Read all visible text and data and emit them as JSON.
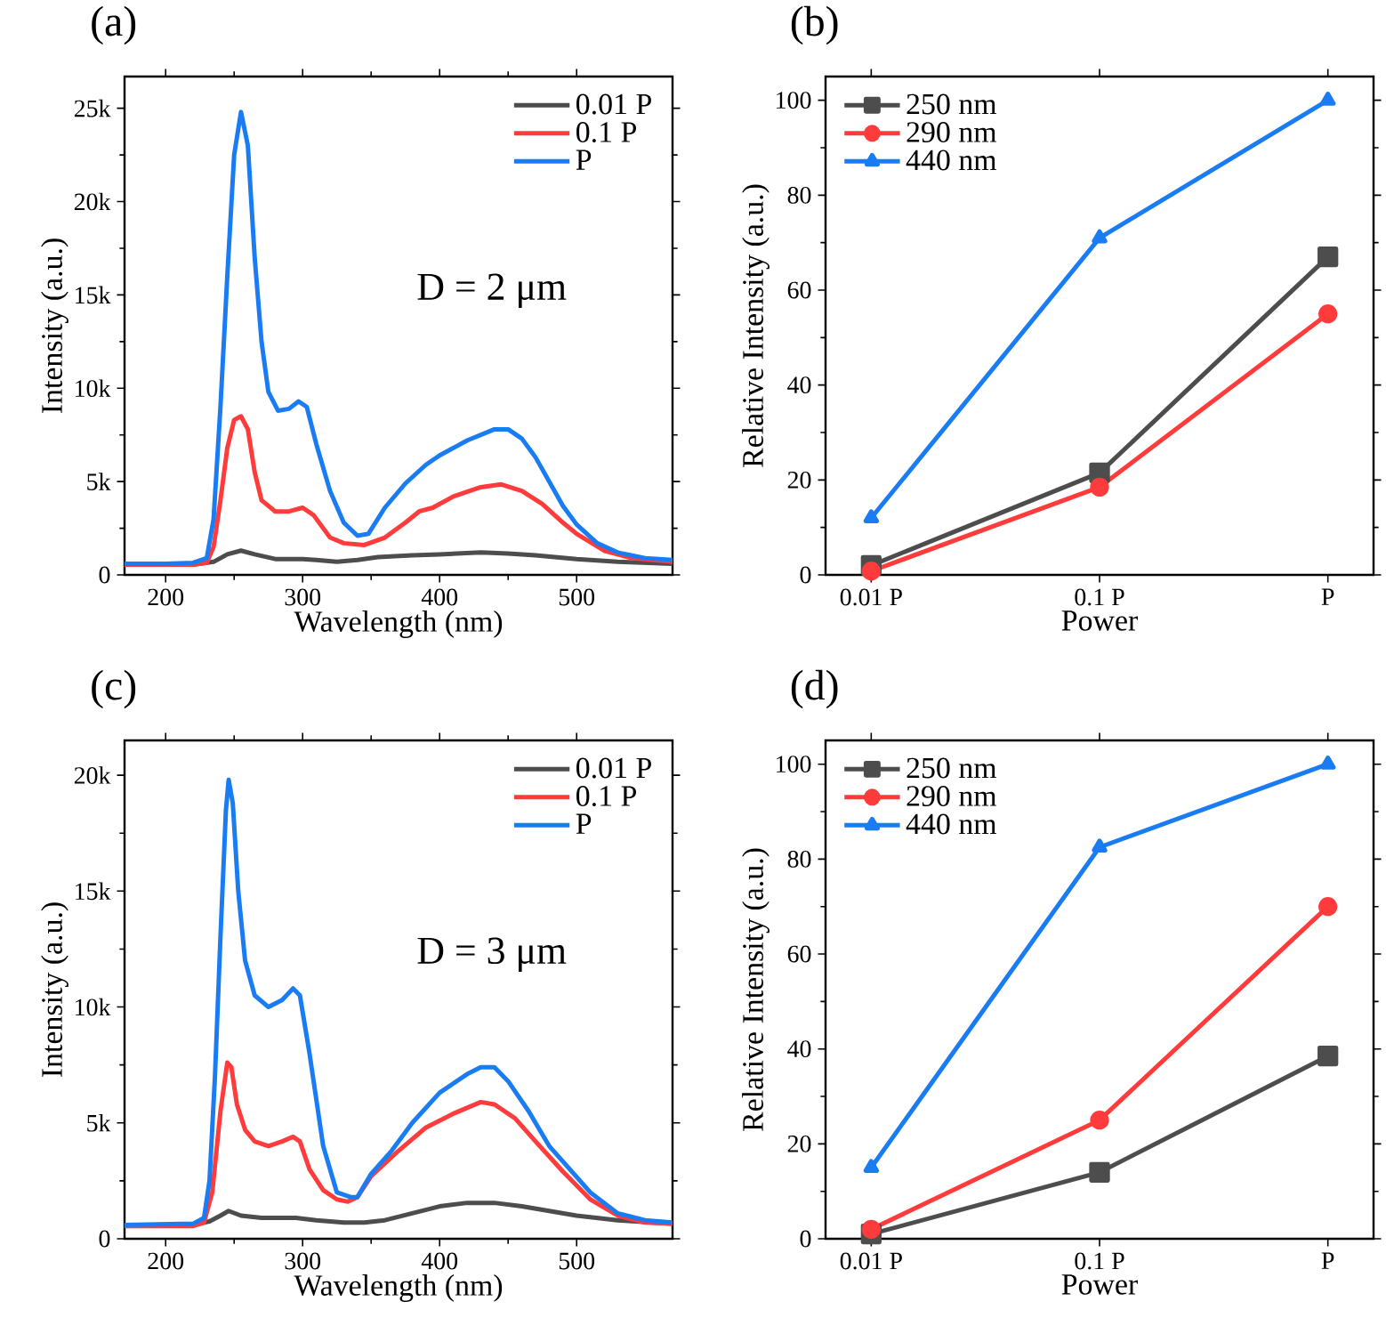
{
  "chart_data": [
    {
      "type": "line",
      "title": "(a)",
      "xlabel": "Wavelength (nm)",
      "ylabel": "Intensity (a.u.)",
      "xlim": [
        170,
        570
      ],
      "ylim": [
        0,
        26700
      ],
      "xticks": [
        200,
        300,
        400,
        500
      ],
      "yticks": [
        0,
        {
          "value": 5000,
          "label": "5k"
        },
        {
          "value": 10000,
          "label": "10k"
        },
        {
          "value": 15000,
          "label": "15k"
        },
        {
          "value": 20000,
          "label": "20k"
        },
        {
          "value": 25000,
          "label": "25k"
        }
      ],
      "legend": "top right",
      "marker": "none",
      "annotations": [
        "D = 2 μm"
      ],
      "series": [
        {
          "name": "0.01 P",
          "color": "#4d4d4d",
          "x": [
            170,
            220,
            235,
            245,
            255,
            265,
            280,
            300,
            310,
            325,
            340,
            355,
            380,
            400,
            430,
            450,
            470,
            500,
            530,
            570
          ],
          "values": [
            600,
            550,
            700,
            1100,
            1300,
            1100,
            850,
            850,
            800,
            700,
            800,
            950,
            1050,
            1100,
            1200,
            1150,
            1050,
            850,
            700,
            600
          ]
        },
        {
          "name": "0.1 P",
          "color": "#ff3b3b",
          "x": [
            170,
            220,
            230,
            235,
            240,
            245,
            250,
            255,
            260,
            265,
            270,
            280,
            290,
            300,
            308,
            320,
            330,
            345,
            360,
            375,
            385,
            395,
            410,
            430,
            445,
            460,
            475,
            490,
            500,
            520,
            540,
            570
          ],
          "values": [
            550,
            550,
            650,
            1500,
            4000,
            6800,
            8300,
            8500,
            7800,
            5500,
            4000,
            3400,
            3400,
            3600,
            3200,
            2000,
            1700,
            1600,
            2000,
            2800,
            3400,
            3600,
            4200,
            4700,
            4850,
            4500,
            3800,
            2800,
            2200,
            1300,
            900,
            700
          ]
        },
        {
          "name": "P",
          "color": "#1a7cf2",
          "x": [
            170,
            200,
            220,
            230,
            235,
            240,
            245,
            250,
            255,
            260,
            265,
            270,
            275,
            282,
            290,
            297,
            303,
            310,
            320,
            330,
            340,
            348,
            360,
            375,
            390,
            400,
            420,
            440,
            450,
            460,
            470,
            480,
            490,
            500,
            515,
            530,
            550,
            570
          ],
          "values": [
            600,
            600,
            650,
            900,
            3000,
            9000,
            16000,
            22500,
            24800,
            23000,
            17000,
            12500,
            9800,
            8800,
            8900,
            9300,
            9000,
            7000,
            4500,
            2800,
            2100,
            2200,
            3600,
            4900,
            5900,
            6400,
            7200,
            7800,
            7800,
            7300,
            6300,
            5000,
            3700,
            2700,
            1700,
            1200,
            900,
            800
          ]
        }
      ]
    },
    {
      "type": "line",
      "title": "(b)",
      "xlabel": "Power",
      "ylabel": "Relative Intensity (a.u.)",
      "categories": [
        "0.01 P",
        "0.1 P",
        "P"
      ],
      "ylim": [
        0,
        105
      ],
      "yticks": [
        0,
        20,
        40,
        60,
        80,
        100
      ],
      "legend": "top left",
      "series": [
        {
          "name": "250 nm",
          "color": "#4d4d4d",
          "marker": "square",
          "values": [
            2,
            21.5,
            67
          ]
        },
        {
          "name": "290 nm",
          "color": "#ff3b3b",
          "marker": "circle",
          "values": [
            0.8,
            18.5,
            55
          ]
        },
        {
          "name": "440 nm",
          "color": "#1a7cf2",
          "marker": "triangle",
          "values": [
            12,
            71,
            100
          ]
        }
      ]
    },
    {
      "type": "line",
      "title": "(c)",
      "xlabel": "Wavelength (nm)",
      "ylabel": "Intensity (a.u.)",
      "xlim": [
        170,
        570
      ],
      "ylim": [
        0,
        21500
      ],
      "xticks": [
        200,
        300,
        400,
        500
      ],
      "yticks": [
        0,
        {
          "value": 5000,
          "label": "5k"
        },
        {
          "value": 10000,
          "label": "10k"
        },
        {
          "value": 15000,
          "label": "15k"
        },
        {
          "value": 20000,
          "label": "20k"
        }
      ],
      "legend": "top right",
      "marker": "none",
      "annotations": [
        "D = 3 μm"
      ],
      "series": [
        {
          "name": "0.01 P",
          "color": "#4d4d4d",
          "x": [
            170,
            220,
            232,
            240,
            246,
            255,
            270,
            295,
            310,
            330,
            345,
            360,
            380,
            400,
            420,
            440,
            460,
            480,
            500,
            530,
            570
          ],
          "values": [
            600,
            600,
            750,
            1000,
            1200,
            1000,
            900,
            900,
            800,
            700,
            700,
            800,
            1100,
            1400,
            1550,
            1550,
            1400,
            1200,
            1000,
            800,
            650
          ]
        },
        {
          "name": "0.1 P",
          "color": "#ff3b3b",
          "x": [
            170,
            220,
            228,
            234,
            240,
            245,
            248,
            252,
            258,
            265,
            275,
            285,
            293,
            298,
            305,
            315,
            325,
            333,
            340,
            350,
            370,
            390,
            410,
            430,
            440,
            455,
            470,
            490,
            510,
            530,
            550,
            570
          ],
          "values": [
            550,
            550,
            700,
            2000,
            5500,
            7600,
            7400,
            5800,
            4700,
            4200,
            4000,
            4200,
            4400,
            4200,
            3000,
            2100,
            1700,
            1600,
            1800,
            2700,
            3800,
            4800,
            5400,
            5900,
            5800,
            5200,
            4200,
            2900,
            1700,
            1000,
            700,
            650
          ]
        },
        {
          "name": "P",
          "color": "#1a7cf2",
          "x": [
            170,
            220,
            228,
            232,
            236,
            240,
            244,
            246,
            249,
            253,
            258,
            265,
            275,
            285,
            293,
            298,
            305,
            315,
            325,
            335,
            340,
            350,
            365,
            380,
            400,
            420,
            430,
            440,
            450,
            465,
            480,
            495,
            510,
            530,
            550,
            570
          ],
          "values": [
            600,
            650,
            900,
            2500,
            7000,
            13000,
            18500,
            19800,
            18800,
            15000,
            12000,
            10500,
            10000,
            10300,
            10800,
            10500,
            8000,
            4000,
            2000,
            1800,
            1800,
            2800,
            3800,
            5000,
            6300,
            7100,
            7400,
            7400,
            6800,
            5500,
            4000,
            3000,
            2000,
            1100,
            800,
            700
          ]
        }
      ]
    },
    {
      "type": "line",
      "title": "(d)",
      "xlabel": "Power",
      "ylabel": "Relative Intensity (a.u.)",
      "categories": [
        "0.01 P",
        "0.1 P",
        "P"
      ],
      "ylim": [
        0,
        105
      ],
      "yticks": [
        0,
        20,
        40,
        60,
        80,
        100
      ],
      "legend": "top left",
      "series": [
        {
          "name": "250 nm",
          "color": "#4d4d4d",
          "marker": "square",
          "values": [
            1,
            14,
            38.5
          ]
        },
        {
          "name": "290 nm",
          "color": "#ff3b3b",
          "marker": "circle",
          "values": [
            2,
            25,
            70
          ]
        },
        {
          "name": "440 nm",
          "color": "#1a7cf2",
          "marker": "triangle",
          "values": [
            15,
            82.5,
            100
          ]
        }
      ]
    }
  ]
}
